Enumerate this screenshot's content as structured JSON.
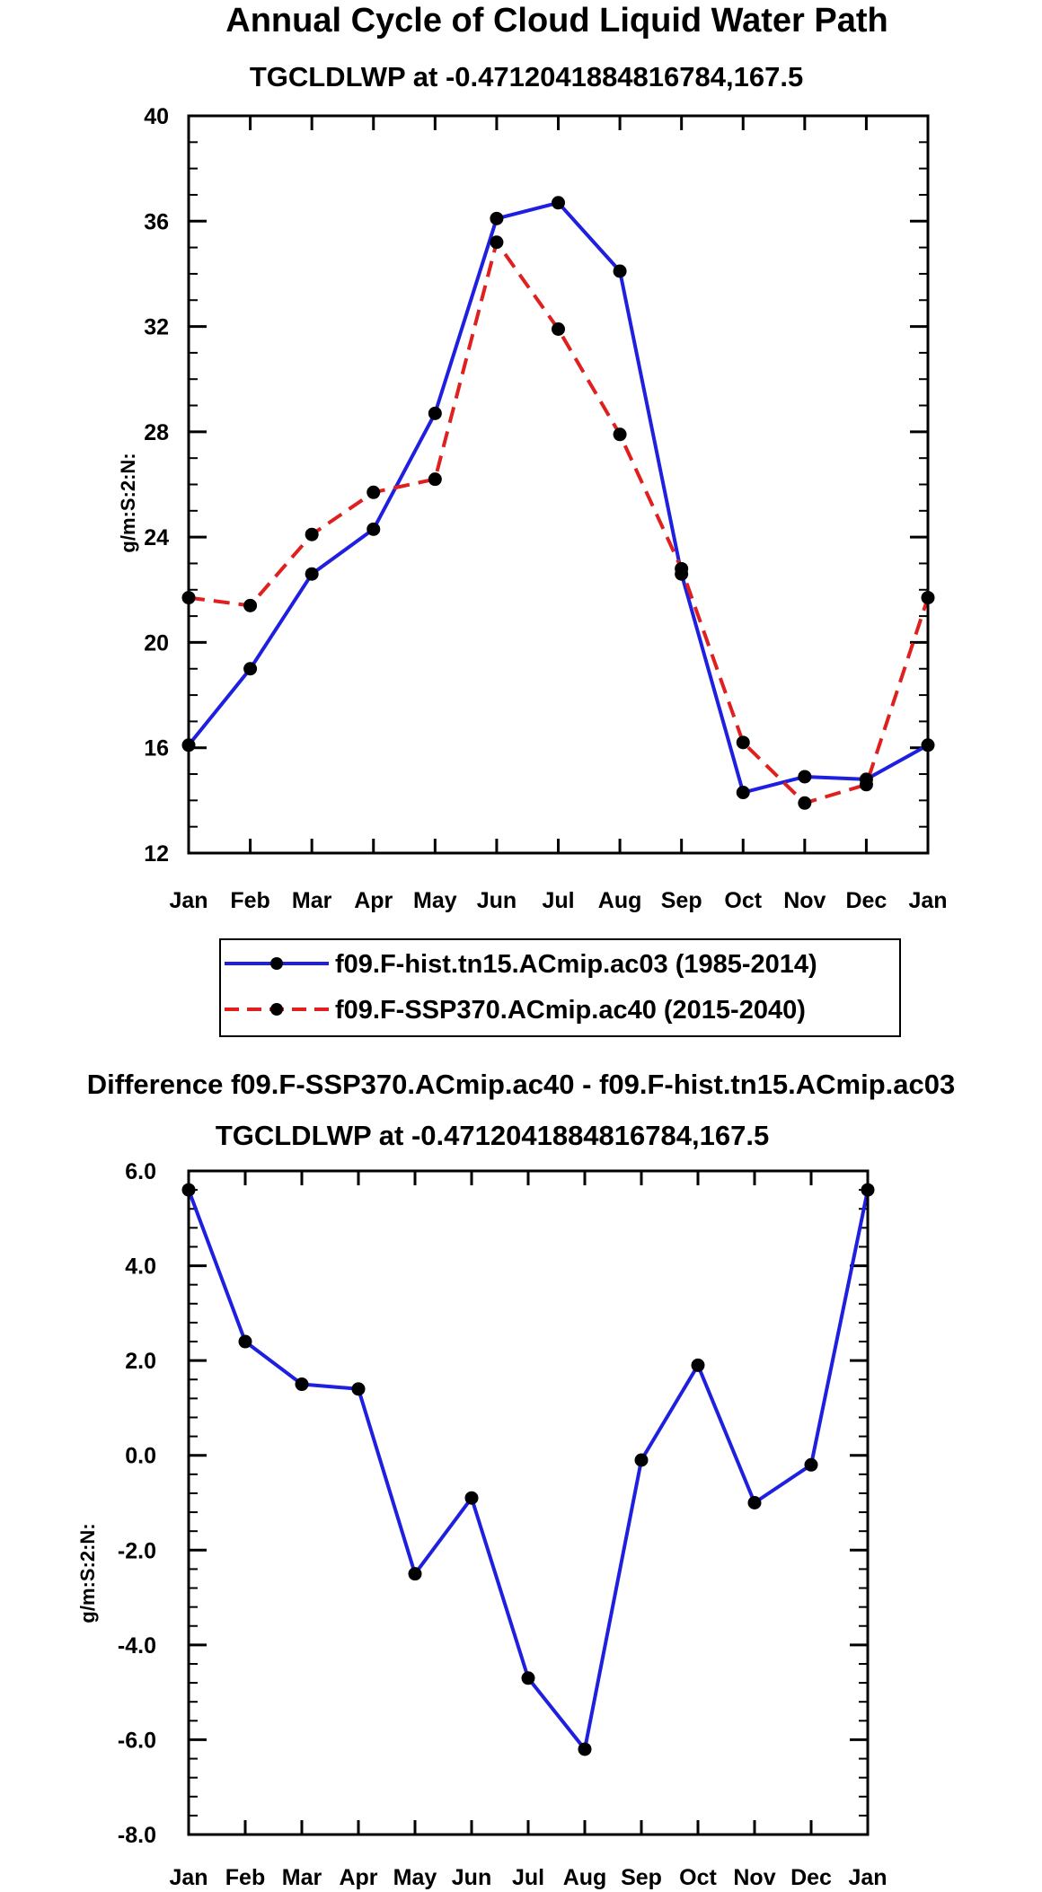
{
  "chart_data": [
    {
      "type": "line",
      "title": "Annual Cycle of Cloud Liquid Water Path",
      "subtitle": "TGCLDLWP at -0.4712041884816784,167.5",
      "xlabel": "",
      "ylabel": "g/m:S:2:N:",
      "categories": [
        "Jan",
        "Feb",
        "Mar",
        "Apr",
        "May",
        "Jun",
        "Jul",
        "Aug",
        "Sep",
        "Oct",
        "Nov",
        "Dec",
        "Jan"
      ],
      "ylim": [
        12,
        40
      ],
      "yticks": [
        "12",
        "16",
        "20",
        "24",
        "28",
        "32",
        "36",
        "40"
      ],
      "legend_position": "bottom",
      "series": [
        {
          "name": "f09.F-hist.tn15.ACmip.ac03 (1985-2014)",
          "color": "#1f1fe0",
          "dash": "solid",
          "values": [
            16.1,
            19.0,
            22.6,
            24.3,
            28.7,
            36.1,
            36.7,
            34.1,
            22.6,
            14.3,
            14.9,
            14.8,
            16.1
          ]
        },
        {
          "name": "f09.F-SSP370.ACmip.ac40 (2015-2040)",
          "color": "#e01f1f",
          "dash": "dashed",
          "values": [
            21.7,
            21.4,
            24.1,
            25.7,
            26.2,
            35.2,
            31.9,
            27.9,
            22.8,
            16.2,
            13.9,
            14.6,
            21.7
          ]
        }
      ]
    },
    {
      "type": "line",
      "title": "Difference f09.F-SSP370.ACmip.ac40 - f09.F-hist.tn15.ACmip.ac03",
      "subtitle": "TGCLDLWP at -0.4712041884816784,167.5",
      "xlabel": "",
      "ylabel": "g/m:S:2:N:",
      "categories": [
        "Jan",
        "Feb",
        "Mar",
        "Apr",
        "May",
        "Jun",
        "Jul",
        "Aug",
        "Sep",
        "Oct",
        "Nov",
        "Dec",
        "Jan"
      ],
      "ylim": [
        -8,
        6
      ],
      "yticks": [
        "-8.0",
        "-6.0",
        "-4.0",
        "-2.0",
        "0.0",
        "2.0",
        "4.0",
        "6.0"
      ],
      "series": [
        {
          "name": "Difference",
          "color": "#1f1fe0",
          "dash": "solid",
          "values": [
            5.6,
            2.4,
            1.5,
            1.4,
            -2.5,
            -0.9,
            -4.7,
            -6.2,
            -0.1,
            1.9,
            -1.0,
            -0.2,
            5.6
          ]
        }
      ]
    }
  ]
}
